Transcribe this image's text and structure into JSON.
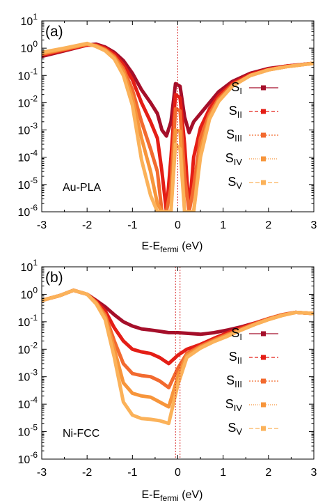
{
  "chart_data": [
    {
      "type": "line",
      "panel_label": "(a)",
      "annotation": "Au-PLA",
      "xlabel": {
        "main": "E-E",
        "sub": "fermi",
        "unit": " (eV)"
      },
      "ylabel": "",
      "xlim": [
        -3,
        3
      ],
      "ylim": [
        1e-06,
        10
      ],
      "y_scale": "log",
      "x_ticks": [
        "-3",
        "-2",
        "-1",
        "0",
        "1",
        "2",
        "3"
      ],
      "y_ticks": [
        {
          "base": "10",
          "exp": "-6"
        },
        {
          "base": "10",
          "exp": "-5"
        },
        {
          "base": "10",
          "exp": "-4"
        },
        {
          "base": "10",
          "exp": "-3"
        },
        {
          "base": "10",
          "exp": "-2"
        },
        {
          "base": "10",
          "exp": "-1"
        },
        {
          "base": "10",
          "exp": "0"
        },
        {
          "base": "10",
          "exp": "1"
        }
      ],
      "fermi_lines": [
        0
      ],
      "grid": false,
      "legend_position": "right",
      "series": [
        {
          "name": "S",
          "sub": "I",
          "color": "#a50f2a",
          "dash": "",
          "x": [
            -3,
            -2.5,
            -2.0,
            -1.8,
            -1.6,
            -1.4,
            -1.2,
            -1.0,
            -0.8,
            -0.6,
            -0.45,
            -0.35,
            -0.25,
            -0.15,
            -0.05,
            0.05,
            0.15,
            0.25,
            0.35,
            0.5,
            0.7,
            0.9,
            1.2,
            1.6,
            2.0,
            2.4,
            3.0
          ],
          "y": [
            0.5,
            0.8,
            1.3,
            1.4,
            1.1,
            0.7,
            0.35,
            0.12,
            0.03,
            0.01,
            0.004,
            0.001,
            0.0006,
            0.002,
            0.05,
            0.04,
            0.003,
            0.0008,
            0.002,
            0.004,
            0.01,
            0.025,
            0.06,
            0.12,
            0.18,
            0.22,
            0.28
          ]
        },
        {
          "name": "S",
          "sub": "II",
          "color": "#e41e16",
          "dash": "5,3",
          "x": [
            -3,
            -2.5,
            -2.0,
            -1.8,
            -1.6,
            -1.4,
            -1.2,
            -1.0,
            -0.8,
            -0.6,
            -0.45,
            -0.35,
            -0.25,
            -0.15,
            -0.05,
            0.05,
            0.15,
            0.25,
            0.35,
            0.5,
            0.7,
            0.9,
            1.2,
            1.6,
            2.0,
            2.4,
            3.0
          ],
          "y": [
            0.55,
            0.85,
            1.3,
            1.3,
            1.0,
            0.6,
            0.25,
            0.07,
            0.01,
            0.002,
            0.0005,
            3e-05,
            1e-06,
            0.0001,
            0.02,
            0.015,
            0.0003,
            1e-06,
            0.0001,
            0.0012,
            0.006,
            0.018,
            0.05,
            0.11,
            0.17,
            0.22,
            0.28
          ]
        },
        {
          "name": "S",
          "sub": "III",
          "color": "#f26a2f",
          "dash": "2,2",
          "x": [
            -3,
            -2.5,
            -2.0,
            -1.8,
            -1.6,
            -1.4,
            -1.2,
            -1.0,
            -0.8,
            -0.6,
            -0.45,
            -0.35,
            -0.25,
            -0.15,
            -0.05,
            0.05,
            0.15,
            0.25,
            0.35,
            0.5,
            0.7,
            0.9,
            1.2,
            1.6,
            2.0,
            2.4,
            3.0
          ],
          "y": [
            0.6,
            0.9,
            1.4,
            1.25,
            0.9,
            0.5,
            0.18,
            0.03,
            0.002,
            0.0002,
            3e-05,
            1e-06,
            1e-06,
            8e-06,
            0.006,
            0.005,
            2e-05,
            1e-06,
            8e-06,
            0.0005,
            0.004,
            0.014,
            0.045,
            0.1,
            0.16,
            0.21,
            0.28
          ]
        },
        {
          "name": "S",
          "sub": "IV",
          "color": "#f7953b",
          "dash": "1,2",
          "x": [
            -3,
            -2.5,
            -2.0,
            -1.8,
            -1.6,
            -1.4,
            -1.2,
            -1.0,
            -0.8,
            -0.6,
            -0.45,
            -0.35,
            -0.25,
            -0.15,
            -0.05,
            0.05,
            0.15,
            0.25,
            0.35,
            0.5,
            0.7,
            0.9,
            1.2,
            1.6,
            2.0,
            2.4,
            3.0
          ],
          "y": [
            0.65,
            0.95,
            1.4,
            1.2,
            0.85,
            0.45,
            0.14,
            0.015,
            0.0005,
            3e-05,
            2e-06,
            1e-06,
            1e-06,
            1e-06,
            0.001,
            0.0009,
            1e-06,
            1e-06,
            1e-06,
            0.0002,
            0.003,
            0.012,
            0.04,
            0.1,
            0.16,
            0.21,
            0.28
          ]
        },
        {
          "name": "S",
          "sub": "V",
          "color": "#fbb25a",
          "dash": "6,3",
          "x": [
            -3,
            -2.5,
            -2.0,
            -1.8,
            -1.6,
            -1.4,
            -1.2,
            -1.0,
            -0.8,
            -0.6,
            -0.45,
            -0.35,
            -0.25,
            -0.15,
            -0.05,
            0.05,
            0.15,
            0.25,
            0.35,
            0.5,
            0.7,
            0.9,
            1.2,
            1.6,
            2.0,
            2.4,
            3.0
          ],
          "y": [
            0.7,
            1.0,
            1.5,
            1.15,
            0.8,
            0.4,
            0.1,
            0.008,
            8e-05,
            4e-06,
            1e-06,
            1e-06,
            1e-06,
            1e-06,
            0.0003,
            0.0002,
            1e-06,
            1e-06,
            1e-06,
            0.0001,
            0.0025,
            0.011,
            0.04,
            0.1,
            0.16,
            0.21,
            0.28
          ]
        }
      ]
    },
    {
      "type": "line",
      "panel_label": "(b)",
      "annotation": "Ni-FCC",
      "xlabel": {
        "main": "E-E",
        "sub": "fermi",
        "unit": " (eV)"
      },
      "ylabel": "",
      "xlim": [
        -3,
        3
      ],
      "ylim": [
        1e-06,
        10
      ],
      "y_scale": "log",
      "x_ticks": [
        "-3",
        "-2",
        "-1",
        "0",
        "1",
        "2",
        "3"
      ],
      "y_ticks": [
        {
          "base": "10",
          "exp": "-6"
        },
        {
          "base": "10",
          "exp": "-5"
        },
        {
          "base": "10",
          "exp": "-4"
        },
        {
          "base": "10",
          "exp": "-3"
        },
        {
          "base": "10",
          "exp": "-2"
        },
        {
          "base": "10",
          "exp": "-1"
        },
        {
          "base": "10",
          "exp": "0"
        },
        {
          "base": "10",
          "exp": "1"
        }
      ],
      "fermi_lines": [
        -0.05,
        0.05
      ],
      "grid": false,
      "legend_position": "right",
      "series": [
        {
          "name": "S",
          "sub": "I",
          "color": "#a50f2a",
          "dash": "",
          "x": [
            -3,
            -2.6,
            -2.3,
            -2.0,
            -1.8,
            -1.6,
            -1.4,
            -1.2,
            -1.0,
            -0.8,
            -0.6,
            -0.4,
            -0.2,
            0.0,
            0.2,
            0.5,
            0.8,
            1.1,
            1.4,
            1.7,
            2.0,
            2.3,
            2.6,
            3.0
          ],
          "y": [
            0.6,
            0.9,
            1.4,
            1.0,
            0.6,
            0.35,
            0.18,
            0.1,
            0.07,
            0.055,
            0.05,
            0.045,
            0.04,
            0.04,
            0.038,
            0.035,
            0.04,
            0.05,
            0.065,
            0.09,
            0.13,
            0.18,
            0.22,
            0.2
          ]
        },
        {
          "name": "S",
          "sub": "II",
          "color": "#e41e16",
          "dash": "5,3",
          "x": [
            -3,
            -2.6,
            -2.3,
            -2.0,
            -1.8,
            -1.6,
            -1.4,
            -1.2,
            -1.0,
            -0.8,
            -0.6,
            -0.4,
            -0.2,
            0.0,
            0.2,
            0.5,
            0.8,
            1.1,
            1.4,
            1.7,
            2.0,
            2.3,
            2.6,
            3.0
          ],
          "y": [
            0.6,
            0.9,
            1.4,
            1.0,
            0.55,
            0.25,
            0.06,
            0.02,
            0.01,
            0.008,
            0.007,
            0.005,
            0.003,
            0.006,
            0.01,
            0.015,
            0.025,
            0.04,
            0.06,
            0.09,
            0.13,
            0.18,
            0.22,
            0.2
          ]
        },
        {
          "name": "S",
          "sub": "III",
          "color": "#f26a2f",
          "dash": "2,2",
          "x": [
            -3,
            -2.6,
            -2.3,
            -2.0,
            -1.8,
            -1.6,
            -1.4,
            -1.2,
            -1.0,
            -0.8,
            -0.6,
            -0.4,
            -0.2,
            0.0,
            0.2,
            0.5,
            0.8,
            1.1,
            1.4,
            1.7,
            2.0,
            2.3,
            2.6,
            3.0
          ],
          "y": [
            0.6,
            0.9,
            1.4,
            1.0,
            0.5,
            0.18,
            0.02,
            0.003,
            0.0013,
            0.0011,
            0.001,
            0.0007,
            0.0004,
            0.002,
            0.007,
            0.013,
            0.022,
            0.035,
            0.055,
            0.085,
            0.13,
            0.18,
            0.22,
            0.2
          ]
        },
        {
          "name": "S",
          "sub": "IV",
          "color": "#f7953b",
          "dash": "1,2",
          "x": [
            -3,
            -2.6,
            -2.3,
            -2.0,
            -1.8,
            -1.6,
            -1.4,
            -1.2,
            -1.0,
            -0.8,
            -0.6,
            -0.4,
            -0.2,
            0.0,
            0.2,
            0.5,
            0.8,
            1.1,
            1.4,
            1.7,
            2.0,
            2.3,
            2.6,
            3.0
          ],
          "y": [
            0.6,
            0.9,
            1.4,
            1.0,
            0.5,
            0.15,
            0.01,
            0.0006,
            0.00025,
            0.0002,
            0.00018,
            0.00012,
            8e-05,
            0.001,
            0.006,
            0.012,
            0.02,
            0.033,
            0.05,
            0.08,
            0.12,
            0.17,
            0.22,
            0.2
          ]
        },
        {
          "name": "S",
          "sub": "V",
          "color": "#fbb25a",
          "dash": "6,3",
          "x": [
            -3,
            -2.6,
            -2.3,
            -2.0,
            -1.8,
            -1.6,
            -1.4,
            -1.2,
            -1.0,
            -0.8,
            -0.6,
            -0.4,
            -0.2,
            0.0,
            0.2,
            0.5,
            0.8,
            1.1,
            1.4,
            1.7,
            2.0,
            2.3,
            2.6,
            3.0
          ],
          "y": [
            0.6,
            0.9,
            1.4,
            1.0,
            0.45,
            0.12,
            0.005,
            0.00012,
            4e-05,
            3e-05,
            2.8e-05,
            2.5e-05,
            2e-05,
            0.0005,
            0.005,
            0.011,
            0.019,
            0.03,
            0.05,
            0.08,
            0.12,
            0.17,
            0.22,
            0.2
          ]
        }
      ]
    }
  ]
}
